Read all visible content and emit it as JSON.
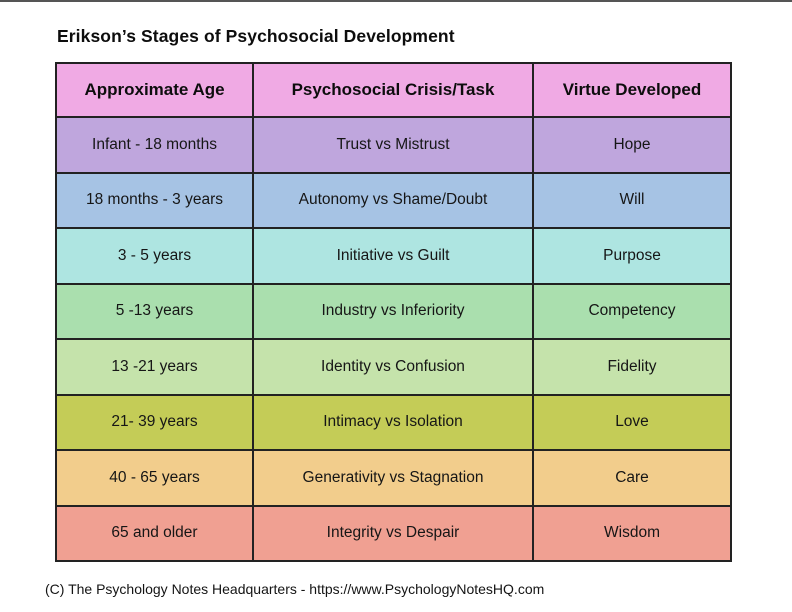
{
  "page": {
    "title": "Erikson’s Stages of Psychosocial Development",
    "footer": "(C) The Psychology Notes Headquarters - https://www.PsychologyNotesHQ.com",
    "background_color": "#ffffff",
    "top_edge_color": "#555555",
    "table_border_color": "#222222"
  },
  "table": {
    "header": {
      "color": "#f0aae4",
      "columns": [
        "Approximate Age",
        "Psychosocial Crisis/Task",
        "Virtue Developed"
      ]
    },
    "rows": [
      {
        "age": "Infant - 18 months",
        "crisis": "Trust vs Mistrust",
        "virtue": "Hope",
        "color": "#bfa6dd"
      },
      {
        "age": "18 months - 3 years",
        "crisis": "Autonomy vs Shame/Doubt",
        "virtue": "Will",
        "color": "#a6c3e4"
      },
      {
        "age": "3 - 5 years",
        "crisis": "Initiative vs Guilt",
        "virtue": "Purpose",
        "color": "#aee5e1"
      },
      {
        "age": "5 -13 years",
        "crisis": "Industry vs Inferiority",
        "virtue": "Competency",
        "color": "#aadfae"
      },
      {
        "age": "13 -21 years",
        "crisis": "Identity vs Confusion",
        "virtue": "Fidelity",
        "color": "#c5e3ab"
      },
      {
        "age": "21- 39 years",
        "crisis": "Intimacy vs Isolation",
        "virtue": "Love",
        "color": "#c4cc57"
      },
      {
        "age": "40 - 65 years",
        "crisis": "Generativity vs Stagnation",
        "virtue": "Care",
        "color": "#f2cd8c"
      },
      {
        "age": "65 and older",
        "crisis": "Integrity vs Despair",
        "virtue": "Wisdom",
        "color": "#f0a092"
      }
    ]
  },
  "chart_data": {
    "type": "table",
    "title": "Erikson’s Stages of Psychosocial Development",
    "columns": [
      "Approximate Age",
      "Psychosocial Crisis/Task",
      "Virtue Developed"
    ],
    "rows": [
      [
        "Infant - 18 months",
        "Trust vs Mistrust",
        "Hope"
      ],
      [
        "18 months - 3 years",
        "Autonomy vs Shame/Doubt",
        "Will"
      ],
      [
        "3 - 5 years",
        "Initiative vs Guilt",
        "Purpose"
      ],
      [
        "5 -13 years",
        "Industry vs Inferiority",
        "Competency"
      ],
      [
        "13 -21 years",
        "Identity vs Confusion",
        "Fidelity"
      ],
      [
        "21- 39 years",
        "Intimacy vs Isolation",
        "Love"
      ],
      [
        "40 - 65 years",
        "Generativity vs Stagnation",
        "Care"
      ],
      [
        "65 and older",
        "Integrity vs Despair",
        "Wisdom"
      ]
    ],
    "row_colors": [
      "#bfa6dd",
      "#a6c3e4",
      "#aee5e1",
      "#aadfae",
      "#c5e3ab",
      "#c4cc57",
      "#f2cd8c",
      "#f0a092"
    ],
    "header_color": "#f0aae4",
    "caption": "(C) The Psychology Notes Headquarters - https://www.PsychologyNotesHQ.com"
  }
}
